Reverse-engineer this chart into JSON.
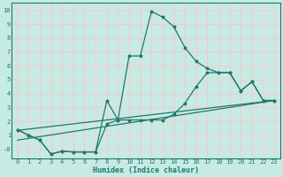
{
  "xlabel": "Humidex (Indice chaleur)",
  "xlim": [
    -0.5,
    23.5
  ],
  "ylim": [
    -0.65,
    10.5
  ],
  "xticks": [
    0,
    1,
    2,
    3,
    4,
    5,
    6,
    7,
    8,
    9,
    10,
    11,
    12,
    13,
    14,
    15,
    16,
    17,
    18,
    19,
    20,
    21,
    22,
    23
  ],
  "yticks": [
    0,
    1,
    2,
    3,
    4,
    5,
    6,
    7,
    8,
    9,
    10
  ],
  "bg_color": "#c8eae4",
  "line_color": "#1a7a6a",
  "grid_color": "#f5caca",
  "line1_x": [
    0,
    1,
    2,
    3,
    4,
    5,
    6,
    7,
    8,
    9,
    10,
    11,
    12,
    13,
    14,
    15,
    16,
    17,
    18,
    19,
    20,
    21,
    22,
    23
  ],
  "line1_y": [
    1.4,
    1.0,
    0.65,
    -0.35,
    -0.15,
    -0.2,
    -0.2,
    -0.2,
    3.5,
    2.1,
    6.7,
    6.7,
    9.9,
    9.5,
    8.8,
    7.3,
    6.3,
    5.8,
    5.5,
    5.5,
    4.2,
    4.85,
    3.5,
    3.5
  ],
  "line2_x": [
    0,
    1,
    2,
    3,
    4,
    5,
    6,
    7,
    8,
    9,
    10,
    11,
    12,
    13,
    14,
    15,
    16,
    17,
    18,
    19,
    20,
    21,
    22,
    23
  ],
  "line2_y": [
    1.4,
    1.0,
    0.65,
    -0.35,
    -0.15,
    -0.2,
    -0.2,
    -0.2,
    1.8,
    2.1,
    2.1,
    2.1,
    2.1,
    2.1,
    2.5,
    3.3,
    4.5,
    5.5,
    5.5,
    5.5,
    4.2,
    4.85,
    3.5,
    3.5
  ],
  "line3_x": [
    0,
    23
  ],
  "line3_y": [
    1.35,
    3.5
  ],
  "line4_x": [
    0,
    23
  ],
  "line4_y": [
    0.65,
    3.5
  ]
}
